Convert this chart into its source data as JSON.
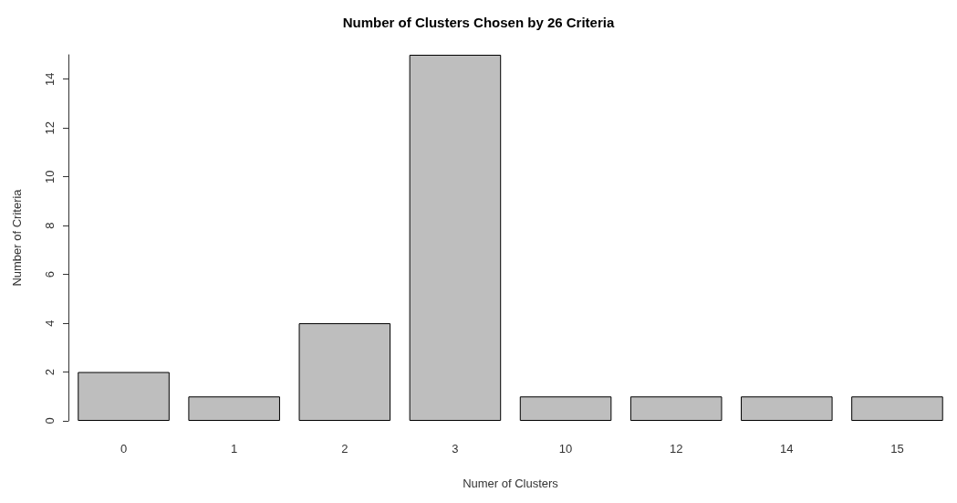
{
  "chart_data": {
    "type": "bar",
    "title": "Number of Clusters Chosen by 26 Criteria",
    "xlabel": "Numer of Clusters",
    "ylabel": "Number of Criteria",
    "categories": [
      "0",
      "1",
      "2",
      "3",
      "10",
      "12",
      "14",
      "15"
    ],
    "values": [
      2,
      1,
      4,
      15,
      1,
      1,
      1,
      1
    ],
    "color": "#bebebe",
    "ylim": [
      0,
      15
    ],
    "yticks": [
      0,
      2,
      4,
      6,
      8,
      10,
      12,
      14
    ],
    "grid": false
  }
}
